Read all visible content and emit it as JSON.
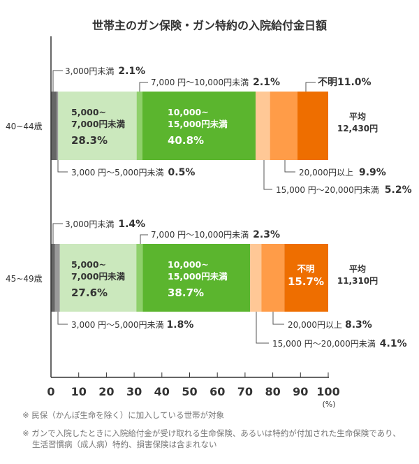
{
  "chart_data": {
    "type": "bar",
    "orientation": "horizontal-stacked",
    "title": "世帯主のガン保険・ガン特約の入院給付金日額",
    "xlim": [
      0,
      100
    ],
    "xticks": [
      "0",
      "10",
      "20",
      "30",
      "40",
      "50",
      "60",
      "70",
      "80",
      "90",
      "100"
    ],
    "xunit": "(%)",
    "grid": false,
    "categories": [
      "40~44歳",
      "45~49歳"
    ],
    "series": [
      {
        "name": "3,000円未満",
        "values": [
          2.1,
          1.4
        ],
        "color": "#666666"
      },
      {
        "name": "3,000円～5,000円未満",
        "values": [
          0.5,
          1.8
        ],
        "color": "#9a9a9a"
      },
      {
        "name": "5,000~7,000円未満",
        "values": [
          28.3,
          27.6
        ],
        "color": "#cbe8bd"
      },
      {
        "name": "7,000円～10,000円未満",
        "values": [
          2.1,
          2.3
        ],
        "color": "#8fd06b"
      },
      {
        "name": "10,000~15,000円未満",
        "values": [
          40.8,
          38.7
        ],
        "color": "#5bb52e"
      },
      {
        "name": "15,000円～20,000円未満",
        "values": [
          5.2,
          4.1
        ],
        "color": "#ffc896"
      },
      {
        "name": "20,000円以上",
        "values": [
          9.9,
          8.3
        ],
        "color": "#ff9c48"
      },
      {
        "name": "不明",
        "values": [
          11.0,
          15.7
        ],
        "color": "#ee6e00"
      }
    ],
    "averages": [
      "12,430円",
      "11,310円"
    ],
    "average_label": "平均"
  },
  "labels": {
    "g1": {
      "lt3000": "3,000円未満",
      "lt3000_pct": "2.1%",
      "r7_10": "7,000 円～10,000円未満",
      "r7_10_pct": "2.1%",
      "unknown": "不明",
      "unknown_pct": "11.0%",
      "r5_7a": "5,000~",
      "r5_7b": "7,000円未満",
      "r5_7_pct": "28.3%",
      "r10_15a": "10,000~",
      "r10_15b": "15,000円未満",
      "r10_15_pct": "40.8%",
      "r3_5": "3,000 円～5,000円未満",
      "r3_5_pct": "0.5%",
      "ge20": "20,000円以上",
      "ge20_pct": "9.9%",
      "r15_20": "15,000 円～20,000円未満",
      "r15_20_pct": "5.2%"
    },
    "g2": {
      "lt3000": "3,000円未満",
      "lt3000_pct": "1.4%",
      "r7_10": "7,000 円～10,000円未満",
      "r7_10_pct": "2.3%",
      "unknown": "不明",
      "unknown_pct": "15.7%",
      "r5_7a": "5,000~",
      "r5_7b": "7,000円未満",
      "r5_7_pct": "27.6%",
      "r10_15a": "10,000~",
      "r10_15b": "15,000円未満",
      "r10_15_pct": "38.7%",
      "r3_5": "3,000 円～5,000円未満",
      "r3_5_pct": "1.8%",
      "ge20": "20,000円以上",
      "ge20_pct": "8.3%",
      "r15_20": "15,000 円～20,000円未満",
      "r15_20_pct": "4.1%"
    }
  },
  "notes": [
    "※ 民保（かんぽ生命を除く）に加入している世帯が対象",
    "※ ガンで入院したときに入院給付金が受け取れる生命保険、あるいは特約が付加された生命保険であり、",
    "生活習慣病（成人病）特約、損害保険は含まれない"
  ]
}
